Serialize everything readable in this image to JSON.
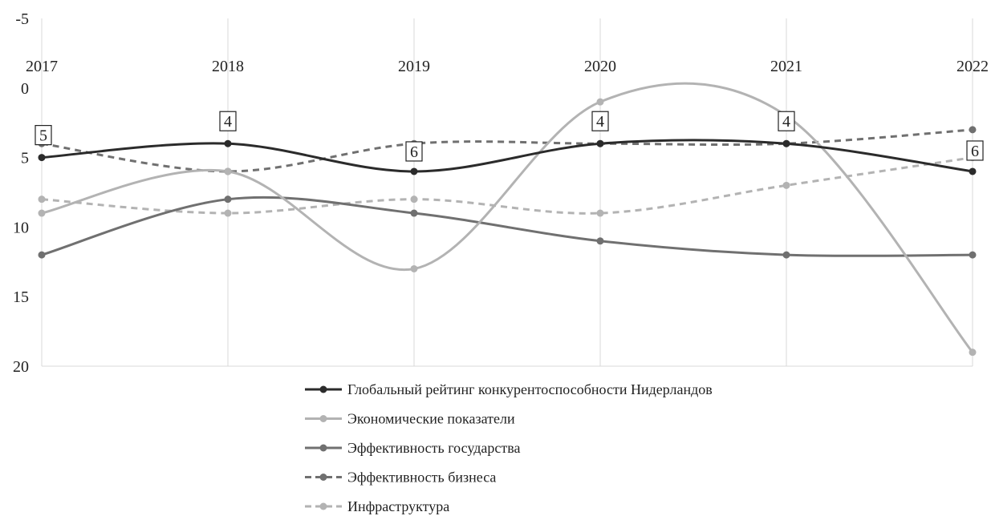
{
  "chart_data": {
    "type": "line",
    "x": [
      "2017",
      "2018",
      "2019",
      "2020",
      "2021",
      "2022"
    ],
    "ylim": [
      -5,
      20
    ],
    "y_inverted": true,
    "y_ticks": [
      "-5",
      "0",
      "5",
      "10",
      "15",
      "20"
    ],
    "grid": "vertical",
    "legend_position": "bottom",
    "smoothed": true,
    "series": [
      {
        "name": "Глобальный рейтинг конкурентоспособности Нидерландов",
        "values": [
          5,
          4,
          6,
          4,
          4,
          6
        ],
        "data_labels": [
          "5",
          "4",
          "6",
          "4",
          "4",
          "6"
        ],
        "color": "#2b2b2b",
        "dashed": false
      },
      {
        "name": "Экономические показатели",
        "values": [
          9,
          6,
          13,
          1,
          2,
          19
        ],
        "color": "#b3b3b3",
        "dashed": false
      },
      {
        "name": "Эффективность государства",
        "values": [
          12,
          8,
          9,
          11,
          12,
          12
        ],
        "color": "#707070",
        "dashed": false
      },
      {
        "name": "Эффективность бизнеса",
        "values": [
          4,
          6,
          4,
          4,
          4,
          3
        ],
        "color": "#707070",
        "dashed": true
      },
      {
        "name": "Инфраструктура",
        "values": [
          8,
          9,
          8,
          9,
          7,
          5
        ],
        "color": "#b3b3b3",
        "dashed": true
      }
    ]
  }
}
